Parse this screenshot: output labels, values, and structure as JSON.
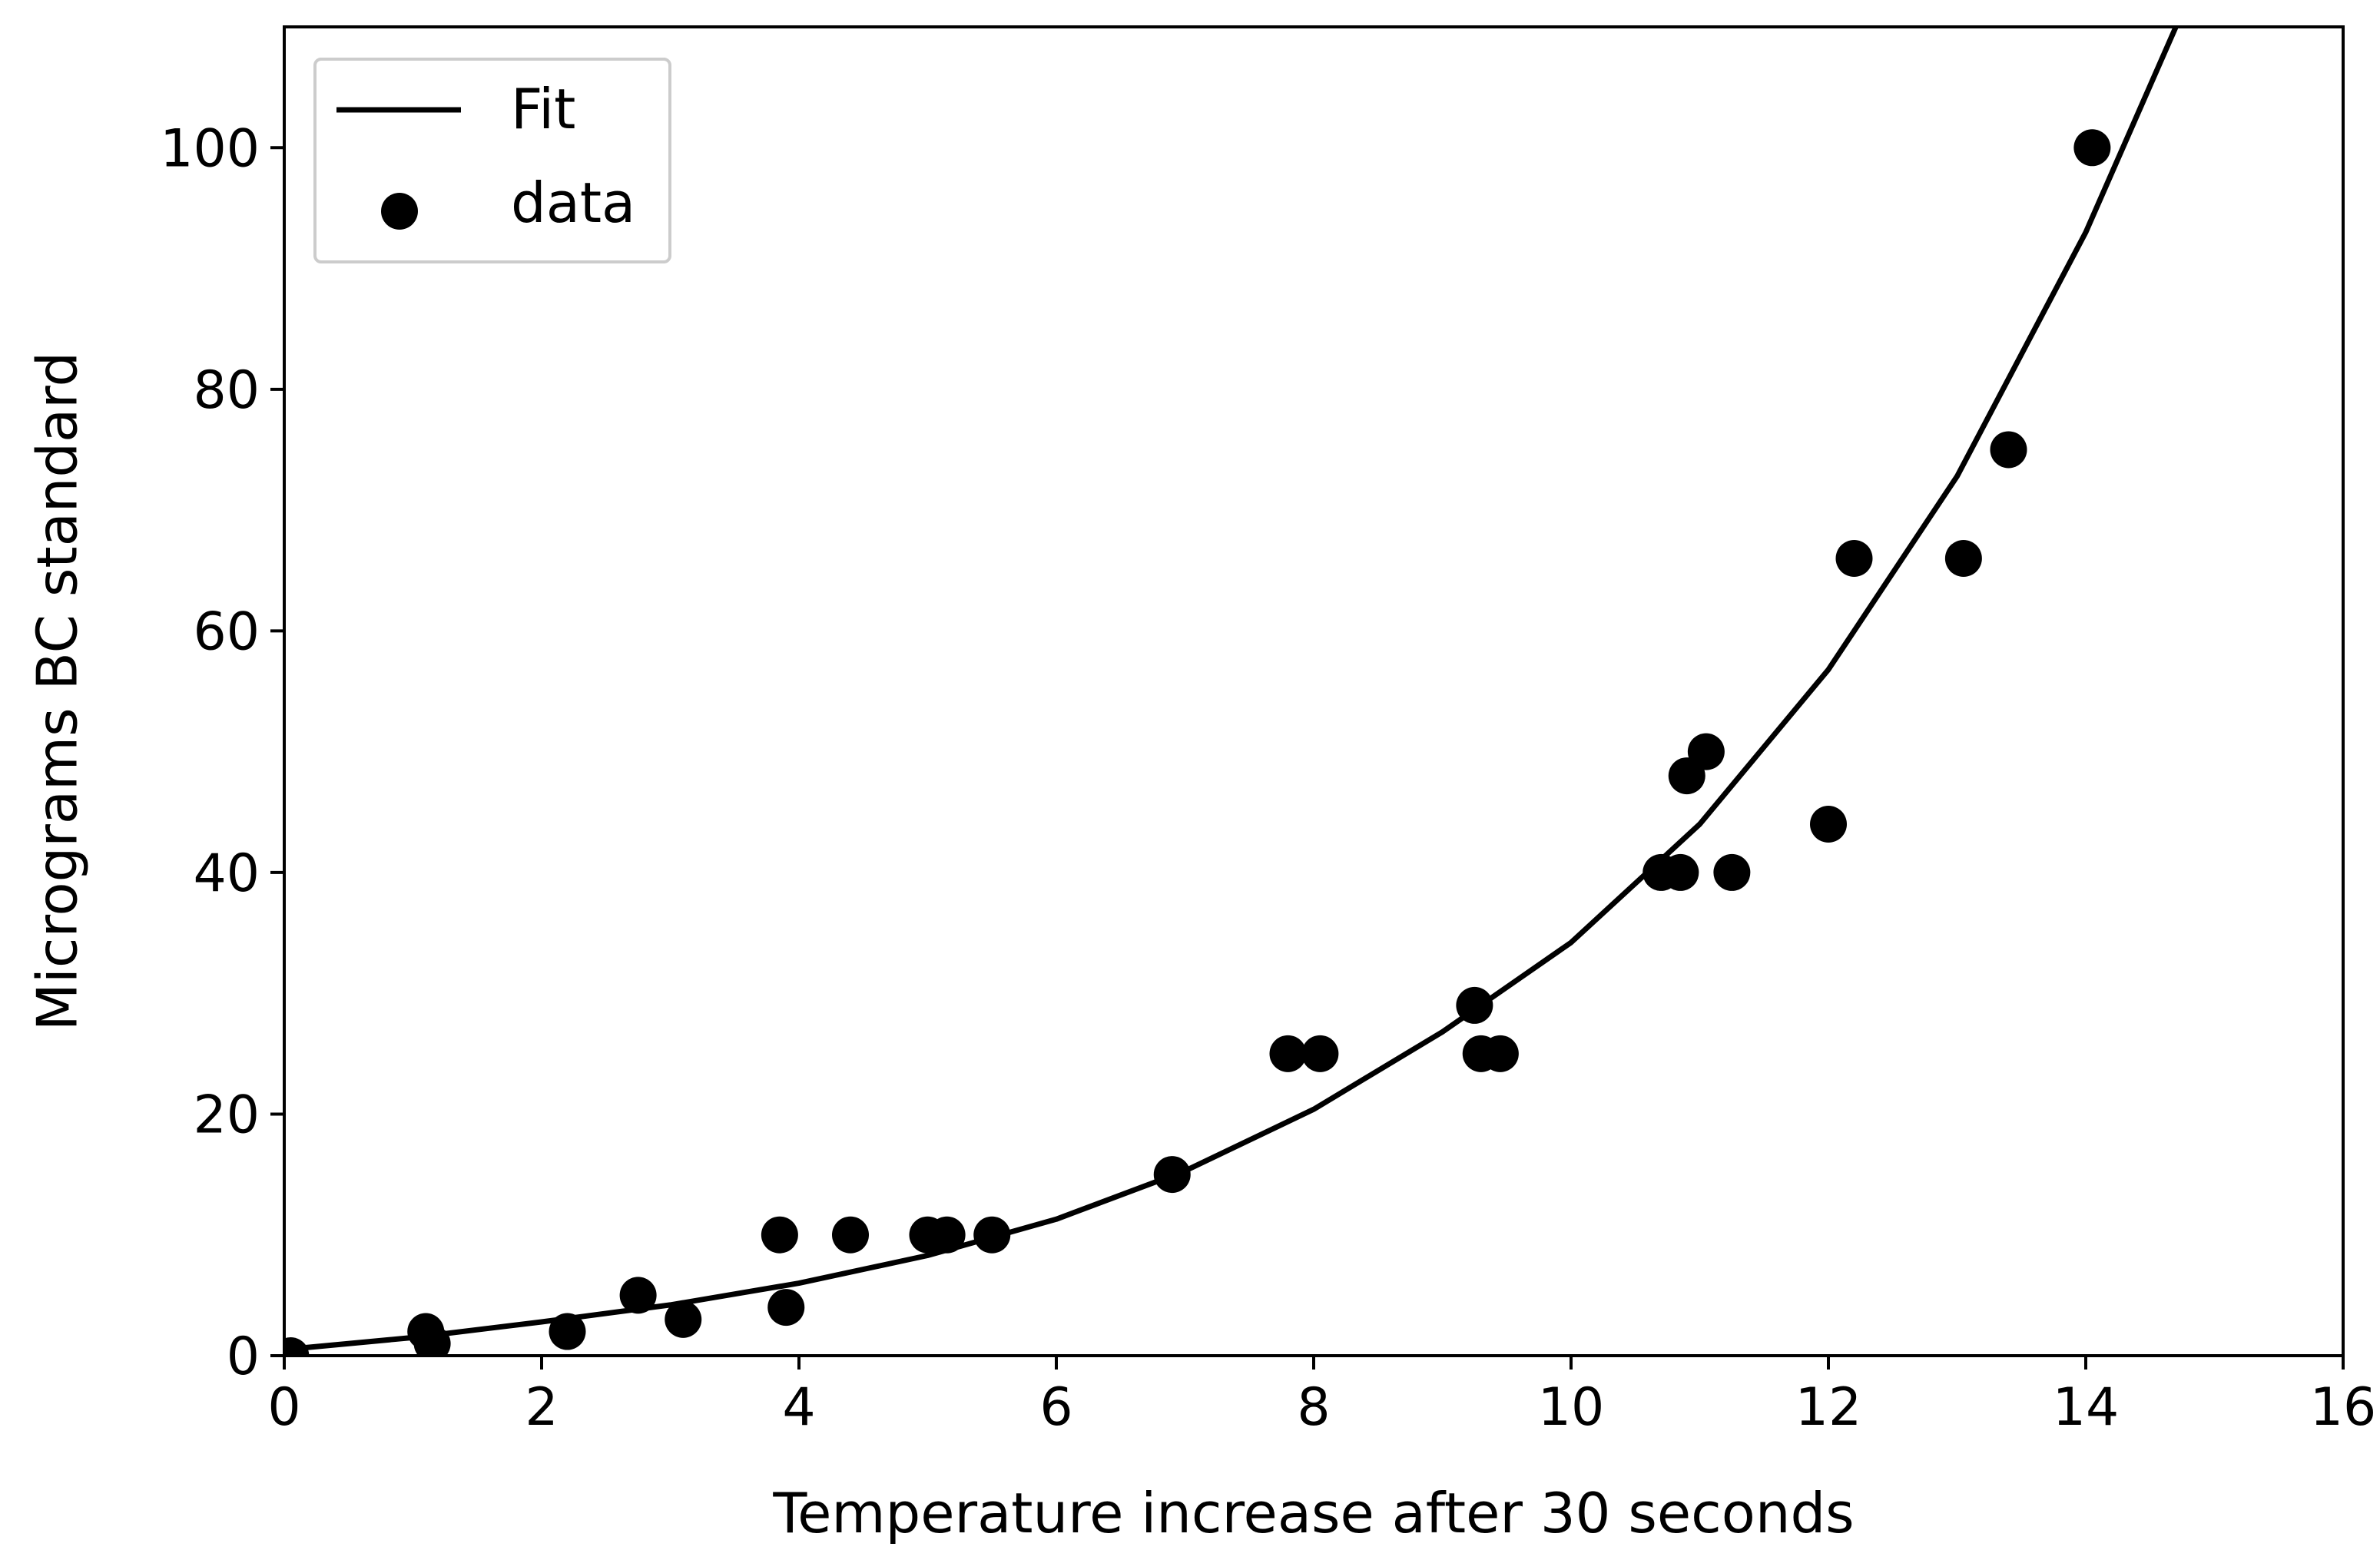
{
  "chart_data": {
    "type": "scatter",
    "title": "",
    "xlabel": "Temperature increase after 30 seconds",
    "ylabel": "Micrograms BC standard",
    "xlim": [
      0,
      16
    ],
    "ylim": [
      0,
      110
    ],
    "xticks": [
      0,
      2,
      4,
      6,
      8,
      10,
      12,
      14,
      16
    ],
    "yticks": [
      0,
      20,
      40,
      60,
      80,
      100
    ],
    "grid": false,
    "legend": {
      "placement": "top-left",
      "entries": [
        {
          "label": "Fit",
          "marker": "line"
        },
        {
          "label": "data",
          "marker": "circle"
        }
      ]
    },
    "series": [
      {
        "name": "Fit",
        "kind": "line",
        "color": "#000000",
        "x": [
          0,
          1,
          2,
          3,
          4,
          5,
          6,
          7,
          8,
          9,
          10,
          11,
          12,
          13,
          14,
          14.7
        ],
        "y": [
          0.5,
          1.5,
          2.8,
          4.2,
          6.0,
          8.3,
          11.3,
          15.3,
          20.4,
          26.8,
          34.2,
          44.0,
          56.8,
          72.8,
          93.0,
          110.0
        ]
      },
      {
        "name": "data",
        "kind": "scatter",
        "color": "#000000",
        "x": [
          0.05,
          1.1,
          1.15,
          2.2,
          2.75,
          3.1,
          3.85,
          3.9,
          4.4,
          5.0,
          5.15,
          5.5,
          6.9,
          7.8,
          8.05,
          9.25,
          9.3,
          9.45,
          10.7,
          10.85,
          10.9,
          11.05,
          11.25,
          12.0,
          12.2,
          13.05,
          13.4,
          14.05
        ],
        "y": [
          0,
          2,
          1,
          2,
          5,
          3,
          10,
          4,
          10,
          10,
          10,
          10,
          15,
          25,
          25,
          29,
          25,
          25,
          40,
          40,
          48,
          50,
          40,
          44,
          66,
          66,
          75,
          100
        ]
      }
    ]
  }
}
